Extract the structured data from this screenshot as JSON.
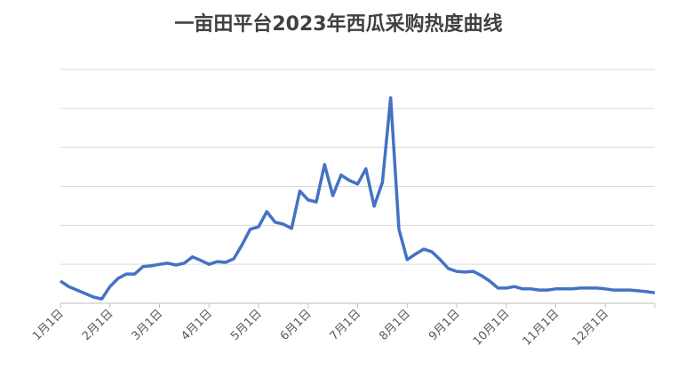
{
  "chart_data": {
    "type": "line",
    "title": "一亩田平台2023年西瓜采购热度曲线",
    "categories": [
      "1月1日",
      null,
      null,
      null,
      null,
      null,
      "2月1日",
      null,
      null,
      null,
      null,
      null,
      "3月1日",
      null,
      null,
      null,
      null,
      null,
      "4月1日",
      null,
      null,
      null,
      null,
      null,
      "5月1日",
      null,
      null,
      null,
      null,
      null,
      "6月1日",
      null,
      null,
      null,
      null,
      null,
      "7月1日",
      null,
      null,
      null,
      null,
      null,
      "8月1日",
      null,
      null,
      null,
      null,
      null,
      "9月1日",
      null,
      null,
      null,
      null,
      null,
      "10月1日",
      null,
      null,
      null,
      null,
      null,
      "11月1日",
      null,
      null,
      null,
      null,
      null,
      "12月1日",
      null,
      null,
      null,
      null,
      null,
      null
    ],
    "values": [
      0.57,
      0.43,
      0.34,
      0.25,
      0.16,
      0.11,
      0.43,
      0.64,
      0.75,
      0.75,
      0.94,
      0.96,
      1.0,
      1.03,
      0.98,
      1.03,
      1.19,
      1.1,
      1.0,
      1.07,
      1.05,
      1.14,
      1.5,
      1.9,
      1.96,
      2.35,
      2.08,
      2.03,
      1.92,
      2.88,
      2.65,
      2.6,
      3.56,
      2.76,
      3.29,
      3.15,
      3.06,
      3.45,
      2.49,
      3.1,
      5.27,
      1.9,
      1.12,
      1.26,
      1.39,
      1.32,
      1.12,
      0.89,
      0.82,
      0.8,
      0.82,
      0.71,
      0.57,
      0.39,
      0.39,
      0.43,
      0.37,
      0.37,
      0.34,
      0.34,
      0.37,
      0.37,
      0.37,
      0.39,
      0.39,
      0.39,
      0.37,
      0.34,
      0.34,
      0.34,
      0.32,
      0.3,
      0.27
    ],
    "color": "#4472c4",
    "ylim": [
      0,
      6
    ],
    "ygrid": [
      1,
      2,
      3,
      4,
      5,
      6
    ],
    "grid": true
  }
}
